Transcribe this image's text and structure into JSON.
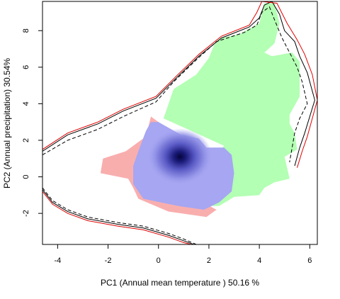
{
  "chart_data": {
    "type": "area",
    "title": "",
    "xlabel": "PC1 (Annual mean temperature ) 50.16 %",
    "ylabel": "PC2 (Annual precipitation) 30.54%",
    "xlim": [
      -4.6,
      6.3
    ],
    "ylim": [
      -3.7,
      9.6
    ],
    "x_ticks": [
      -4,
      -2,
      0,
      2,
      4,
      6
    ],
    "y_ticks": [
      -2,
      0,
      2,
      4,
      6,
      8
    ],
    "x_tick_labels": [
      "-4",
      "-2",
      "0",
      "2",
      "4",
      "6"
    ],
    "y_tick_labels": [
      "-2",
      "0",
      "2",
      "4",
      "6",
      "8"
    ],
    "grid": false,
    "legend": "none",
    "colors": {
      "green_region": "#b3ffb3",
      "red_region": "#f9aeae",
      "blue_region": "#a6a6f2",
      "density_core": "#0a0a4d",
      "contour_solid": "#000000",
      "contour_red": "#e00000",
      "contour_dashed": "#000000"
    },
    "regions": {
      "green": [
        [
          2.0,
          6.5
        ],
        [
          2.2,
          7.2
        ],
        [
          2.5,
          7.6
        ],
        [
          3.2,
          7.8
        ],
        [
          4.0,
          8.4
        ],
        [
          4.2,
          9.5
        ],
        [
          4.6,
          9.5
        ],
        [
          4.8,
          8.4
        ],
        [
          4.6,
          7.3
        ],
        [
          4.2,
          6.8
        ],
        [
          4.5,
          6.6
        ],
        [
          5.3,
          6.8
        ],
        [
          5.6,
          6.3
        ],
        [
          5.6,
          4.4
        ],
        [
          5.2,
          3.4
        ],
        [
          5.2,
          2.9
        ],
        [
          5.4,
          2.4
        ],
        [
          5.5,
          1.5
        ],
        [
          5.0,
          1.1
        ],
        [
          5.2,
          -0.1
        ],
        [
          4.6,
          -0.3
        ],
        [
          4.2,
          -0.6
        ],
        [
          4.0,
          -1.0
        ],
        [
          3.0,
          -1.1
        ],
        [
          2.4,
          -1.6
        ],
        [
          0.6,
          -1.6
        ],
        [
          1.8,
          0.2
        ],
        [
          2.6,
          1.7
        ],
        [
          0.2,
          3.2
        ],
        [
          0.6,
          4.8
        ],
        [
          1.5,
          5.6
        ]
      ],
      "red": [
        [
          -0.3,
          3.3
        ],
        [
          -0.5,
          2.2
        ],
        [
          -1.3,
          1.4
        ],
        [
          -2.2,
          1.0
        ],
        [
          -2.3,
          0.2
        ],
        [
          -1.2,
          -0.1
        ],
        [
          -1.0,
          -0.6
        ],
        [
          -0.8,
          -1.2
        ],
        [
          0.4,
          -1.9
        ],
        [
          1.9,
          -2.2
        ],
        [
          2.3,
          -1.8
        ],
        [
          1.5,
          -1.2
        ],
        [
          1.0,
          1.8
        ],
        [
          0.0,
          3.0
        ]
      ],
      "blue": [
        [
          -0.3,
          3.0
        ],
        [
          -0.5,
          2.5
        ],
        [
          -0.8,
          1.4
        ],
        [
          -1.0,
          0.6
        ],
        [
          -1.0,
          -0.4
        ],
        [
          -0.6,
          -1.2
        ],
        [
          0.1,
          -1.4
        ],
        [
          0.8,
          -1.6
        ],
        [
          1.8,
          -1.8
        ],
        [
          2.4,
          -1.4
        ],
        [
          2.9,
          -0.8
        ],
        [
          3.0,
          0.2
        ],
        [
          2.9,
          1.2
        ],
        [
          2.6,
          1.6
        ],
        [
          1.9,
          1.6
        ],
        [
          1.6,
          2.1
        ],
        [
          0.9,
          2.3
        ],
        [
          0.0,
          3.0
        ]
      ],
      "core": [
        0.85,
        1.1
      ]
    },
    "contours": {
      "solid_upper": [
        [
          -4.6,
          1.4
        ],
        [
          -3.6,
          2.3
        ],
        [
          -2.4,
          2.9
        ],
        [
          -1.4,
          3.6
        ],
        [
          -0.1,
          4.3
        ],
        [
          0.7,
          5.4
        ],
        [
          1.6,
          6.6
        ],
        [
          2.5,
          7.6
        ],
        [
          3.6,
          8.2
        ],
        [
          4.0,
          8.7
        ],
        [
          4.2,
          9.4
        ],
        [
          4.5,
          9.6
        ],
        [
          4.8,
          8.9
        ],
        [
          5.0,
          8.0
        ],
        [
          5.4,
          7.4
        ],
        [
          5.6,
          6.6
        ],
        [
          5.9,
          5.7
        ],
        [
          6.2,
          4.2
        ],
        [
          6.0,
          3.3
        ],
        [
          5.8,
          2.4
        ],
        [
          5.6,
          1.6
        ],
        [
          5.4,
          0.6
        ]
      ],
      "red_upper": [
        [
          -4.6,
          1.5
        ],
        [
          -3.6,
          2.4
        ],
        [
          -2.4,
          3.0
        ],
        [
          -1.4,
          3.7
        ],
        [
          -0.1,
          4.4
        ],
        [
          0.7,
          5.5
        ],
        [
          1.6,
          6.7
        ],
        [
          2.5,
          7.7
        ],
        [
          3.6,
          8.3
        ],
        [
          3.9,
          9.0
        ],
        [
          4.1,
          9.6
        ],
        [
          4.7,
          9.5
        ],
        [
          5.1,
          8.4
        ],
        [
          5.5,
          7.5
        ],
        [
          5.8,
          6.7
        ],
        [
          6.1,
          5.6
        ],
        [
          6.3,
          4.2
        ],
        [
          6.1,
          3.2
        ],
        [
          5.9,
          2.2
        ],
        [
          5.7,
          1.4
        ],
        [
          5.5,
          0.5
        ]
      ],
      "dashed_upper": [
        [
          -4.6,
          1.2
        ],
        [
          -3.6,
          2.0
        ],
        [
          -2.4,
          2.6
        ],
        [
          -1.4,
          3.3
        ],
        [
          -0.1,
          4.1
        ],
        [
          0.6,
          5.2
        ],
        [
          1.5,
          6.4
        ],
        [
          2.3,
          7.4
        ],
        [
          3.4,
          7.9
        ],
        [
          3.9,
          8.3
        ],
        [
          4.1,
          9.0
        ],
        [
          4.4,
          9.3
        ],
        [
          4.6,
          8.6
        ],
        [
          4.9,
          7.6
        ],
        [
          5.2,
          6.8
        ],
        [
          5.5,
          6.0
        ],
        [
          5.7,
          5.2
        ],
        [
          5.9,
          4.0
        ],
        [
          5.6,
          3.2
        ],
        [
          5.4,
          2.4
        ],
        [
          5.3,
          1.6
        ],
        [
          5.2,
          0.8
        ]
      ],
      "solid_lower": [
        [
          -4.6,
          -0.7
        ],
        [
          -4.2,
          -1.4
        ],
        [
          -3.6,
          -1.9
        ],
        [
          -2.8,
          -2.3
        ],
        [
          -1.6,
          -2.6
        ],
        [
          -0.6,
          -2.8
        ],
        [
          0.4,
          -3.2
        ],
        [
          1.0,
          -3.5
        ],
        [
          1.4,
          -3.7
        ]
      ],
      "red_lower": [
        [
          -4.6,
          -0.8
        ],
        [
          -4.2,
          -1.5
        ],
        [
          -3.6,
          -2.0
        ],
        [
          -2.8,
          -2.4
        ],
        [
          -1.6,
          -2.7
        ],
        [
          -0.6,
          -2.9
        ],
        [
          0.4,
          -3.3
        ],
        [
          1.0,
          -3.6
        ],
        [
          1.3,
          -3.7
        ]
      ],
      "dashed_lower": [
        [
          -4.6,
          -0.6
        ],
        [
          -4.2,
          -1.3
        ],
        [
          -3.6,
          -1.8
        ],
        [
          -2.8,
          -2.2
        ],
        [
          -1.6,
          -2.5
        ],
        [
          -0.6,
          -2.7
        ],
        [
          0.4,
          -3.1
        ],
        [
          1.0,
          -3.4
        ],
        [
          1.5,
          -3.7
        ]
      ]
    }
  }
}
